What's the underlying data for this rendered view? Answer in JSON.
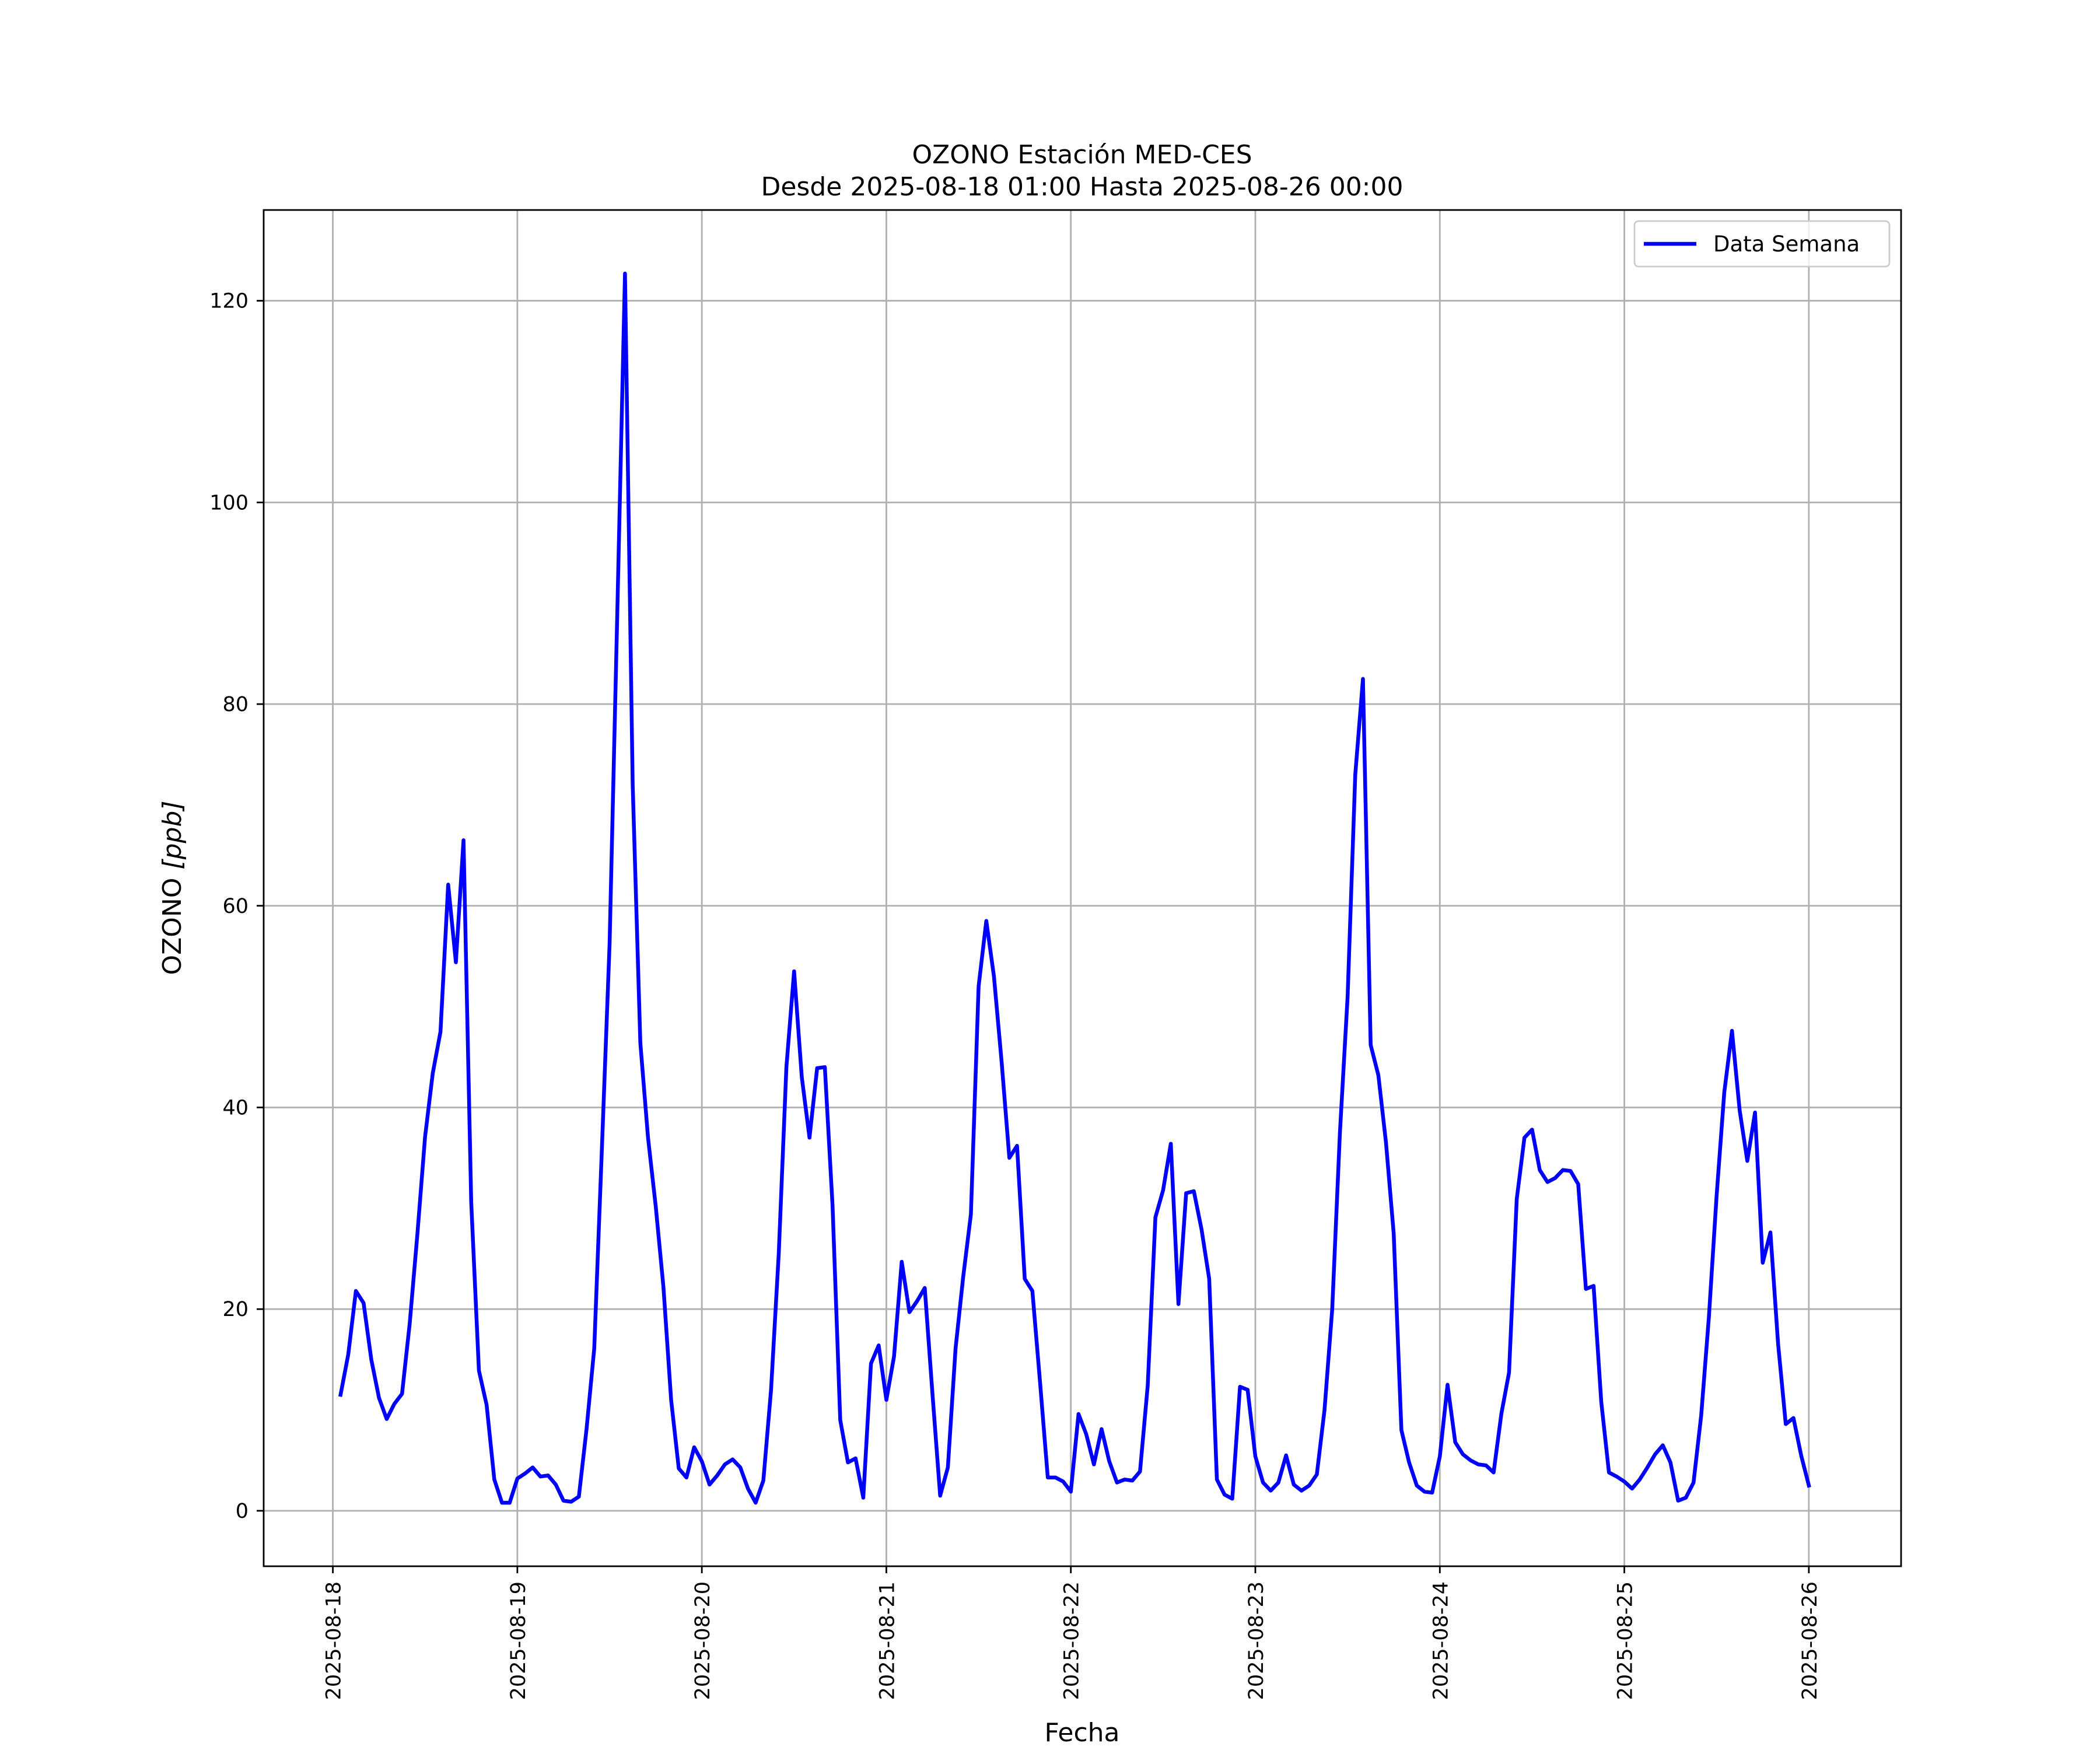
{
  "chart_data": {
    "type": "line",
    "title_line1": "OZONO Estación MED-CES",
    "title_line2": "Desde 2025-08-18 01:00 Hasta 2025-08-26 00:00",
    "xlabel": "Fecha",
    "ylabel": "OZONO [ppb]",
    "ylabel_prefix": "OZONO ",
    "ylabel_unit": "[ppb]",
    "xlim": [
      "2025-08-17 15:00",
      "2025-08-26 12:00"
    ],
    "ylim": [
      -5.5,
      129
    ],
    "x_ticks": [
      "2025-08-18",
      "2025-08-19",
      "2025-08-20",
      "2025-08-21",
      "2025-08-22",
      "2025-08-23",
      "2025-08-24",
      "2025-08-25",
      "2025-08-26"
    ],
    "y_ticks": [
      0,
      20,
      40,
      60,
      80,
      100,
      120
    ],
    "grid": true,
    "legend_position": "top-right",
    "line_color": "#0000ff",
    "series": [
      {
        "name": "Data Semana",
        "x_start": "2025-08-18 01:00",
        "x_step": "1 hour",
        "values": [
          11.5,
          15.5,
          21.8,
          20.6,
          15.0,
          11.2,
          9.1,
          10.6,
          11.6,
          18.6,
          27.5,
          37.1,
          43.4,
          47.5,
          62.1,
          54.4,
          66.5,
          30.6,
          13.9,
          10.5,
          3.1,
          0.8,
          0.8,
          3.2,
          3.7,
          4.3,
          3.4,
          3.5,
          2.6,
          1.0,
          0.9,
          1.4,
          8.1,
          16.1,
          35.9,
          56.2,
          89.0,
          122.7,
          72.0,
          46.4,
          37.0,
          30.2,
          22.2,
          11.0,
          4.2,
          3.3,
          6.3,
          4.9,
          2.6,
          3.5,
          4.6,
          5.1,
          4.3,
          2.2,
          0.8,
          3.0,
          12.0,
          25.5,
          44.0,
          53.5,
          43.0,
          37.0,
          43.9,
          44.0,
          30.3,
          9.0,
          4.8,
          5.2,
          1.3,
          14.6,
          16.4,
          11.0,
          15.3,
          24.7,
          19.7,
          20.8,
          22.1,
          11.6,
          1.5,
          4.3,
          16.1,
          23.2,
          29.4,
          52.0,
          58.5,
          53.0,
          44.5,
          35.0,
          36.2,
          23.0,
          21.8,
          12.7,
          3.3,
          3.3,
          2.9,
          1.9,
          9.6,
          7.6,
          4.6,
          8.1,
          4.9,
          2.8,
          3.1,
          3.0,
          3.9,
          12.4,
          29.1,
          31.8,
          36.4,
          20.5,
          31.5,
          31.7,
          27.9,
          23.0,
          3.1,
          1.6,
          1.2,
          12.3,
          12.0,
          5.4,
          2.8,
          2.0,
          2.8,
          5.5,
          2.6,
          2.0,
          2.5,
          3.6,
          10.0,
          20.0,
          37.5,
          51.0,
          73.0,
          82.5,
          46.2,
          43.2,
          36.5,
          27.5,
          8.0,
          4.8,
          2.5,
          1.9,
          1.8,
          5.4,
          12.5,
          6.8,
          5.6,
          5.0,
          4.6,
          4.5,
          3.8,
          9.6,
          13.7,
          30.9,
          37.0,
          37.8,
          33.8,
          32.6,
          33.0,
          33.8,
          33.7,
          32.4,
          22.0,
          22.3,
          10.8,
          3.8,
          3.4,
          2.9,
          2.2,
          3.1,
          4.3,
          5.6,
          6.5,
          4.8,
          1.0,
          1.3,
          2.8,
          9.5,
          19.2,
          31.2,
          41.5,
          47.6,
          39.7,
          34.7,
          39.5,
          24.6,
          27.6,
          16.6,
          8.6,
          9.2,
          5.5,
          2.5
        ]
      }
    ]
  }
}
